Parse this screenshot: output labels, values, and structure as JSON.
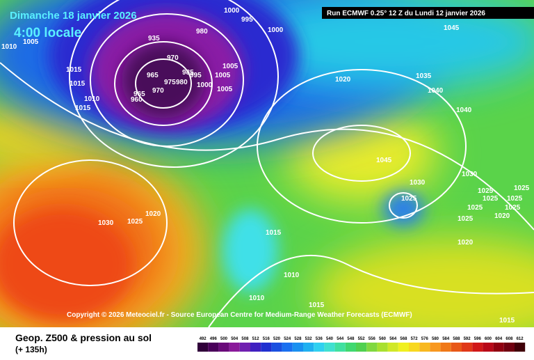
{
  "header": {
    "date": "Dimanche 18 janvier 2026",
    "time": "4:00 locale",
    "run": "Run ECMWF 0.25° 12 Z du Lundi 12 janvier 2026"
  },
  "copyright": "Copyright © 2026 Meteociel.fr - Source European Centre for Medium-Range Weather Forecasts (ECMWF)",
  "footer": {
    "title": "Geop. Z500 & pression au sol",
    "lead": "(+ 135h)"
  },
  "scale": [
    492,
    496,
    500,
    504,
    508,
    512,
    516,
    520,
    524,
    528,
    532,
    536,
    540,
    544,
    548,
    552,
    556,
    560,
    564,
    568,
    572,
    576,
    580,
    584,
    588,
    592,
    596,
    600,
    604,
    608,
    612
  ],
  "isobar_labels": [
    1010,
    1005,
    1015,
    1015,
    1015,
    1010,
    935,
    970,
    980,
    965,
    960,
    965,
    970,
    975,
    980,
    985,
    995,
    1000,
    1005,
    1005,
    1005,
    1000,
    995,
    1000,
    1020,
    1035,
    1040,
    1045,
    1040,
    1045,
    1030,
    1025,
    1030,
    1025,
    1025,
    1025,
    1025,
    1025,
    1025,
    1020,
    1025,
    1020,
    1030,
    1025,
    1020,
    1015,
    1010,
    1010,
    1015,
    1015
  ]
}
